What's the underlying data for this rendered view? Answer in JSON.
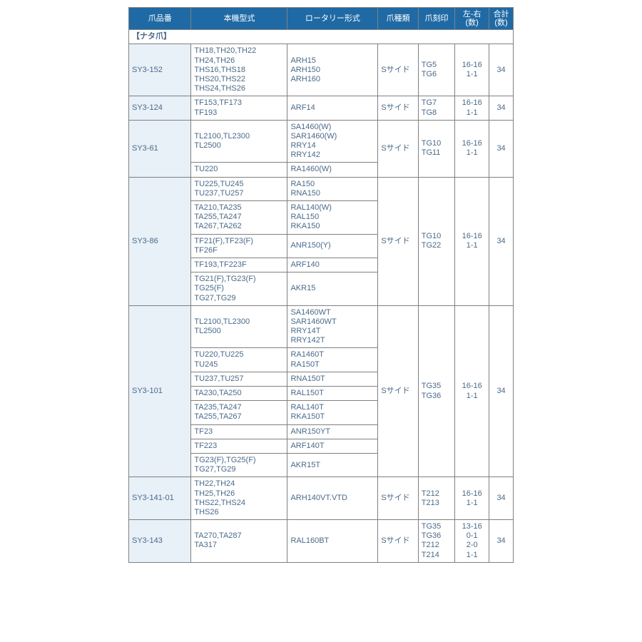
{
  "headers": {
    "c1": "爪品番",
    "c2": "本機型式",
    "c3": "ロータリー形式",
    "c4": "爪種類",
    "c5": "爪刻印",
    "c6": "左-右\n(数)",
    "c7": "合計\n(数)"
  },
  "section": "【ナタ爪】",
  "rows": {
    "r1": {
      "pn": "SY3-152",
      "m": "TH18,TH20,TH22\nTH24,TH26\nTHS16,THS18\nTHS20,THS22\nTHS24,THS26",
      "r": "ARH15\nARH150\nARH160",
      "t": "Sサイド",
      "s": "TG5\nTG6",
      "lr": "16-16\n1-1",
      "tot": "34"
    },
    "r2": {
      "pn": "SY3-124",
      "m": "TF153,TF173\nTF193",
      "r": "ARF14",
      "t": "Sサイド",
      "s": "TG7\nTG8",
      "lr": "16-16\n1-1",
      "tot": "34"
    },
    "r3": {
      "pn": "SY3-61",
      "t": "Sサイド",
      "s": "TG10\nTG11",
      "lr": "16-16\n1-1",
      "tot": "34",
      "sub": [
        {
          "m": "TL2100,TL2300\nTL2500",
          "r": "SA1460(W)\nSAR1460(W)\nRRY14\nRRY142"
        },
        {
          "m": "TU220",
          "r": "RA1460(W)"
        }
      ]
    },
    "r4": {
      "pn": "SY3-86",
      "t": "Sサイド",
      "s": "TG10\nTG22",
      "lr": "16-16\n1-1",
      "tot": "34",
      "sub": [
        {
          "m": "TU225,TU245\nTU237,TU257",
          "r": "RA150\nRNA150"
        },
        {
          "m": "TA210,TA235\nTA255,TA247\nTA267,TA262",
          "r": "RAL140(W)\nRAL150\nRKA150"
        },
        {
          "m": "TF21(F),TF23(F)\nTF26F",
          "r": "ANR150(Y)"
        },
        {
          "m": "TF193,TF223F",
          "r": "ARF140"
        },
        {
          "m": "TG21(F),TG23(F)\nTG25(F)\nTG27,TG29",
          "r": "AKR15"
        }
      ]
    },
    "r5": {
      "pn": "SY3-101",
      "t": "Sサイド",
      "s": "TG35\nTG36",
      "lr": "16-16\n1-1",
      "tot": "34",
      "sub": [
        {
          "m": "TL2100,TL2300\nTL2500",
          "r": "SA1460WT\nSAR1460WT\nRRY14T\nRRY142T"
        },
        {
          "m": "TU220,TU225\nTU245",
          "r": "RA1460T\nRA150T"
        },
        {
          "m": "TU237,TU257",
          "r": "RNA150T"
        },
        {
          "m": "TA230,TA250",
          "r": "RAL150T"
        },
        {
          "m": "TA235,TA247\nTA255,TA267",
          "r": "RAL140T\nRKA150T"
        },
        {
          "m": "TF23",
          "r": "ANR150YT"
        },
        {
          "m": "TF223",
          "r": "ARF140T"
        },
        {
          "m": "TG23(F),TG25(F)\nTG27,TG29",
          "r": "AKR15T"
        }
      ]
    },
    "r6": {
      "pn": "SY3-141-01",
      "m": "TH22,TH24\nTH25,TH26\nTHS22,THS24\nTHS26",
      "r": "ARH140VT.VTD",
      "t": "Sサイド",
      "s": "T212\nT213",
      "lr": "16-16\n1-1",
      "tot": "34"
    },
    "r7": {
      "pn": "SY3-143",
      "m": "TA270,TA287\nTA317",
      "r": "RAL160BT",
      "t": "Sサイド",
      "s": "TG35\nTG36\nT212\nT214",
      "lr": "13-16\n0-1\n2-0\n1-1",
      "tot": "34"
    }
  }
}
